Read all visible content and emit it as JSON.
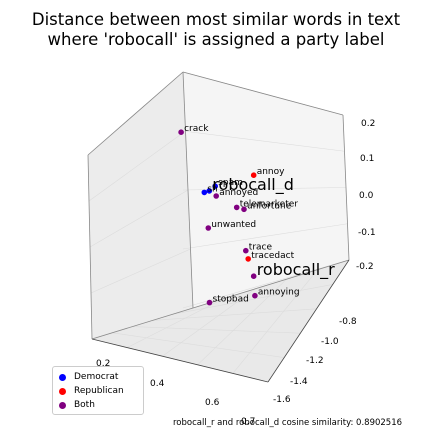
{
  "title_lines": [
    "Distance between most similar words in text",
    "where 'robocall' is assigned a party label"
  ],
  "footnote": "robocall_r and robocall_d cosine similarity: 0.8902516",
  "colors": {
    "Democrat": "#0000ff",
    "Republican": "#ff0000",
    "Both": "#800080"
  },
  "chart_data": {
    "type": "scatter",
    "projection": "3d",
    "title": "Distance between most similar words in text where 'robocall' is assigned a party label",
    "xlim": [
      0.15,
      0.7
    ],
    "ylim": [
      -1.65,
      -0.7
    ],
    "zlim": [
      -0.3,
      0.22
    ],
    "x_ticks": [
      "0.2",
      "0.4",
      "0.6",
      "0.7"
    ],
    "y_ticks": [
      "-1.6",
      "-1.4",
      "-1.2",
      "-1.0",
      "-0.8"
    ],
    "z_ticks": [
      "-0.2",
      "-0.1",
      "0.0",
      "0.1",
      "0.2"
    ],
    "legend": {
      "position": "lower-left",
      "entries": [
        "Democrat",
        "Republican",
        "Both"
      ]
    },
    "annotation": "robocall_r and robocall_d cosine similarity: 0.8902516",
    "points": [
      {
        "label": "crack",
        "party": "Both",
        "x": 0.2,
        "y": -0.95,
        "z": 0.12
      },
      {
        "label": "annoy",
        "party": "Republican",
        "x": 0.52,
        "y": -1.18,
        "z": 0.04
      },
      {
        "label": "spam",
        "party": "Democrat",
        "x": 0.36,
        "y": -1.08,
        "z": 0.0
      },
      {
        "label": "robocall_d",
        "party": "Democrat",
        "x": 0.34,
        "y": -1.08,
        "z": -0.01
      },
      {
        "label": "sh",
        "party": "Democrat",
        "x": 0.33,
        "y": -1.1,
        "z": -0.01
      },
      {
        "label": "annoyed",
        "party": "Both",
        "x": 0.37,
        "y": -1.1,
        "z": -0.02
      },
      {
        "label": "telemarketer",
        "party": "Both",
        "x": 0.47,
        "y": -1.2,
        "z": -0.03
      },
      {
        "label": "unfortune",
        "party": "Both",
        "x": 0.5,
        "y": -1.22,
        "z": -0.03
      },
      {
        "label": "unwanted",
        "party": "Both",
        "x": 0.35,
        "y": -1.12,
        "z": -0.09
      },
      {
        "label": "trace",
        "party": "Both",
        "x": 0.5,
        "y": -1.2,
        "z": -0.13
      },
      {
        "label": "tracedact",
        "party": "Republican",
        "x": 0.52,
        "y": -1.24,
        "z": -0.14
      },
      {
        "label": "robocall_r",
        "party": "Both",
        "x": 0.55,
        "y": -1.28,
        "z": -0.17
      },
      {
        "label": "stopbad",
        "party": "Both",
        "x": 0.38,
        "y": -1.2,
        "z": -0.25
      },
      {
        "label": "annoying",
        "party": "Both",
        "x": 0.56,
        "y": -1.3,
        "z": -0.21
      }
    ]
  }
}
